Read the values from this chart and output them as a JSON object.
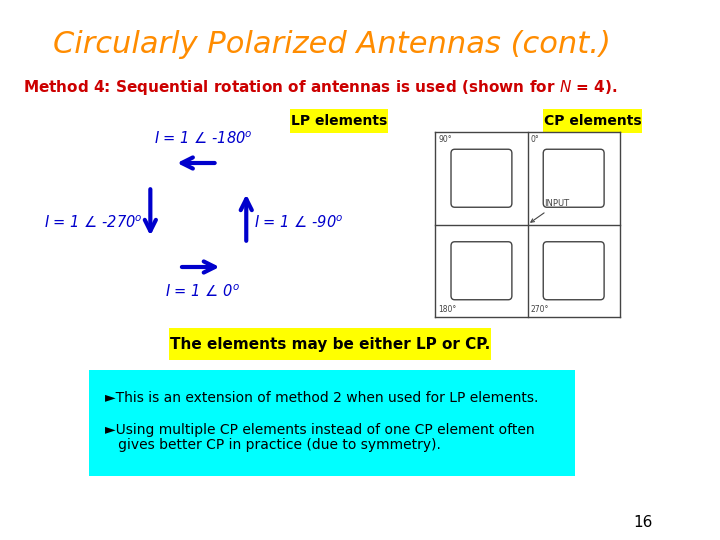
{
  "title": "Circularly Polarized Antennas (cont.)",
  "title_color": "#FF8C00",
  "title_fontsize": 22,
  "bg_color": "#FFFFFF",
  "method_color": "#CC0000",
  "method_fontsize": 11,
  "arrow_color": "#0000CC",
  "label_color": "#0000CC",
  "label_fontsize": 10.5,
  "lp_label": "LP elements",
  "cp_label": "CP elements",
  "badge_bg": "#FFFF00",
  "badge_fg": "#000000",
  "center_box_text": "The elements may be either LP or CP.",
  "center_box_bg": "#FFFF00",
  "center_box_fg": "#000000",
  "bullet_box_bg": "#00FFFF",
  "bullet_box_fg": "#000000",
  "bullet1": "►This is an extension of method 2 when used for LP elements.",
  "bullet2_line1": "►Using multiple CP elements instead of one CP element often",
  "bullet2_line2": "   gives better CP in practice (due to symmetry).",
  "bullet_fontsize": 10,
  "page_num": "16"
}
